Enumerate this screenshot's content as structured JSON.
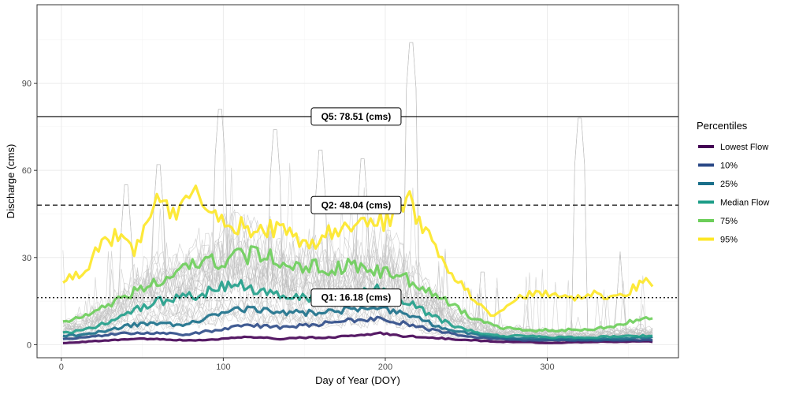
{
  "chart_data": {
    "type": "line",
    "title": "",
    "xlabel": "Day of Year (DOY)",
    "ylabel": "Discharge (cms)",
    "xlim": [
      -15,
      381
    ],
    "ylim": [
      -4.5,
      117
    ],
    "x_ticks": [
      0,
      100,
      200,
      300
    ],
    "y_ticks": [
      0,
      30,
      60,
      90
    ],
    "grid": true,
    "legend": {
      "title": "Percentiles",
      "placement": "right"
    },
    "reference_lines": [
      {
        "name": "Q5",
        "value": 78.51,
        "label": "Q5: 78.51 (cms)",
        "style": "solid"
      },
      {
        "name": "Q2",
        "value": 48.04,
        "label": "Q2: 48.04 (cms)",
        "style": "dashed"
      },
      {
        "name": "Q1",
        "value": 16.18,
        "label": "Q1: 16.18 (cms)",
        "style": "dotted"
      }
    ],
    "background_series": {
      "description": "individual years, thin gray",
      "color": "#bdbdbd",
      "count": 30,
      "peaks": [
        {
          "x": 216,
          "y": 112
        },
        {
          "x": 98,
          "y": 89
        },
        {
          "x": 320,
          "y": 86
        },
        {
          "x": 132,
          "y": 82
        },
        {
          "x": 160,
          "y": 75
        },
        {
          "x": 186,
          "y": 72
        },
        {
          "x": 60,
          "y": 70
        },
        {
          "x": 40,
          "y": 63
        },
        {
          "x": 260,
          "y": 33
        },
        {
          "x": 345,
          "y": 32
        }
      ]
    },
    "series": [
      {
        "name": "Lowest Flow",
        "color": "#440154",
        "x": [
          1,
          15,
          30,
          45,
          60,
          75,
          90,
          105,
          120,
          135,
          150,
          165,
          180,
          195,
          210,
          225,
          240,
          255,
          270,
          285,
          300,
          315,
          330,
          345,
          360,
          365
        ],
        "values": [
          0.5,
          1,
          1.5,
          2,
          2,
          1.5,
          1.5,
          2.5,
          2.5,
          2,
          2.5,
          2.5,
          3,
          4,
          3,
          2.5,
          2,
          1.5,
          1,
          1,
          0.5,
          0.8,
          1,
          1,
          1.2,
          1
        ]
      },
      {
        "name": "10%",
        "color": "#2c4a87",
        "x": [
          1,
          15,
          30,
          45,
          60,
          75,
          90,
          105,
          120,
          135,
          150,
          165,
          180,
          195,
          210,
          225,
          240,
          255,
          270,
          285,
          300,
          315,
          330,
          345,
          360,
          365
        ],
        "values": [
          2,
          2.5,
          3.5,
          4,
          4,
          3.5,
          4.5,
          6,
          6.5,
          6,
          6.5,
          7.5,
          8.5,
          9,
          7.5,
          5.5,
          4,
          2.5,
          2,
          1.5,
          1.5,
          1.5,
          1.5,
          1.5,
          1.5,
          1.5
        ]
      },
      {
        "name": "25%",
        "color": "#1a6f8a",
        "x": [
          1,
          15,
          30,
          45,
          60,
          75,
          90,
          105,
          120,
          135,
          150,
          165,
          180,
          195,
          210,
          225,
          240,
          255,
          270,
          285,
          300,
          315,
          330,
          345,
          360,
          365
        ],
        "values": [
          3,
          3.5,
          5,
          7,
          7,
          7,
          9,
          12,
          12,
          11,
          11,
          11.5,
          12,
          13,
          11,
          8,
          5,
          3.5,
          2.5,
          2,
          2,
          2,
          2,
          2,
          2.5,
          2.5
        ]
      },
      {
        "name": "Median Flow",
        "color": "#1f9e89",
        "x": [
          1,
          15,
          30,
          45,
          60,
          75,
          90,
          105,
          120,
          135,
          150,
          165,
          180,
          195,
          210,
          225,
          240,
          255,
          270,
          285,
          300,
          315,
          330,
          345,
          360,
          365
        ],
        "values": [
          4,
          5,
          8,
          12,
          15,
          16,
          18,
          21,
          19,
          17,
          16,
          16.5,
          17,
          19,
          16,
          11,
          7,
          4.5,
          3,
          3,
          2.5,
          2.5,
          2.5,
          3,
          3,
          3
        ]
      },
      {
        "name": "75%",
        "color": "#6cce59",
        "x": [
          1,
          15,
          30,
          45,
          60,
          75,
          90,
          105,
          120,
          135,
          150,
          165,
          180,
          195,
          210,
          225,
          240,
          255,
          270,
          285,
          300,
          315,
          330,
          345,
          360,
          365
        ],
        "values": [
          8,
          10,
          14,
          18,
          22,
          26,
          28,
          30,
          31,
          29,
          27,
          26.5,
          27,
          26,
          23,
          20,
          14,
          9,
          6,
          5,
          5,
          5,
          5.5,
          7,
          9,
          10
        ]
      },
      {
        "name": "95%",
        "color": "#fde725",
        "x": [
          1,
          5,
          15,
          25,
          35,
          45,
          55,
          60,
          70,
          80,
          90,
          100,
          110,
          120,
          130,
          140,
          150,
          160,
          170,
          180,
          190,
          200,
          210,
          215,
          225,
          235,
          245,
          255,
          265,
          275,
          285,
          295,
          305,
          315,
          325,
          335,
          345,
          355,
          360,
          365
        ],
        "values": [
          22,
          23,
          25,
          35,
          38,
          32,
          42,
          50,
          44,
          55,
          44,
          42,
          41,
          38,
          40,
          38,
          33,
          37,
          40,
          38,
          45,
          42,
          46,
          50,
          38,
          30,
          22,
          15,
          10,
          13,
          17,
          18,
          17,
          16,
          18,
          17,
          17,
          20,
          23,
          19
        ]
      }
    ]
  }
}
